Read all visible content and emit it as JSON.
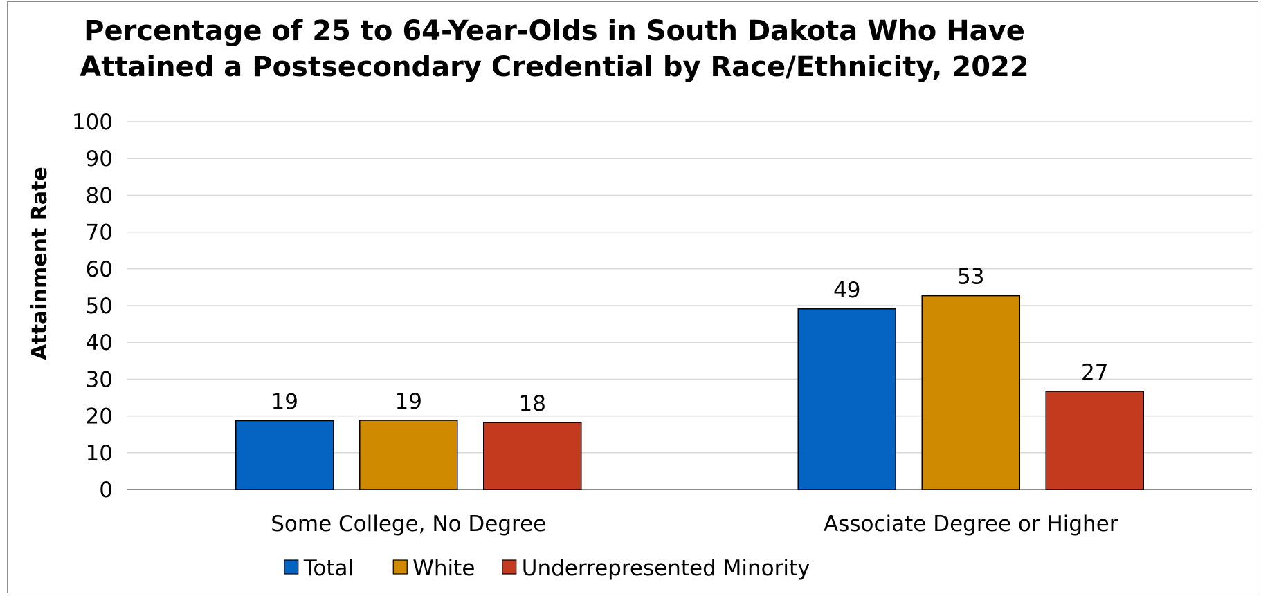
{
  "chart_data": {
    "type": "bar",
    "title_lines": [
      "Percentage of 25 to 64-Year-Olds in South Dakota Who Have",
      "Attained a Postsecondary Credential by Race/Ethnicity, 2022"
    ],
    "xlabel": "",
    "ylabel": "Attainment Rate",
    "ylim": [
      0,
      100
    ],
    "yticks": [
      "0",
      "10",
      "20",
      "30",
      "40",
      "50",
      "60",
      "70",
      "80",
      "90",
      "100"
    ],
    "grid": true,
    "legend_position": "bottom",
    "categories": [
      "Some College, No Degree",
      "Associate Degree or Higher"
    ],
    "series": [
      {
        "name": "Total",
        "color": "#0563C1",
        "values": [
          18.7,
          49.1
        ],
        "labels": [
          "19",
          "49"
        ]
      },
      {
        "name": "White",
        "color": "#D08A00",
        "values": [
          18.8,
          52.7
        ],
        "labels": [
          "19",
          "53"
        ]
      },
      {
        "name": "Underrepresented Minority",
        "color": "#C43A1F",
        "values": [
          18.2,
          26.7
        ],
        "labels": [
          "18",
          "27"
        ]
      }
    ]
  }
}
